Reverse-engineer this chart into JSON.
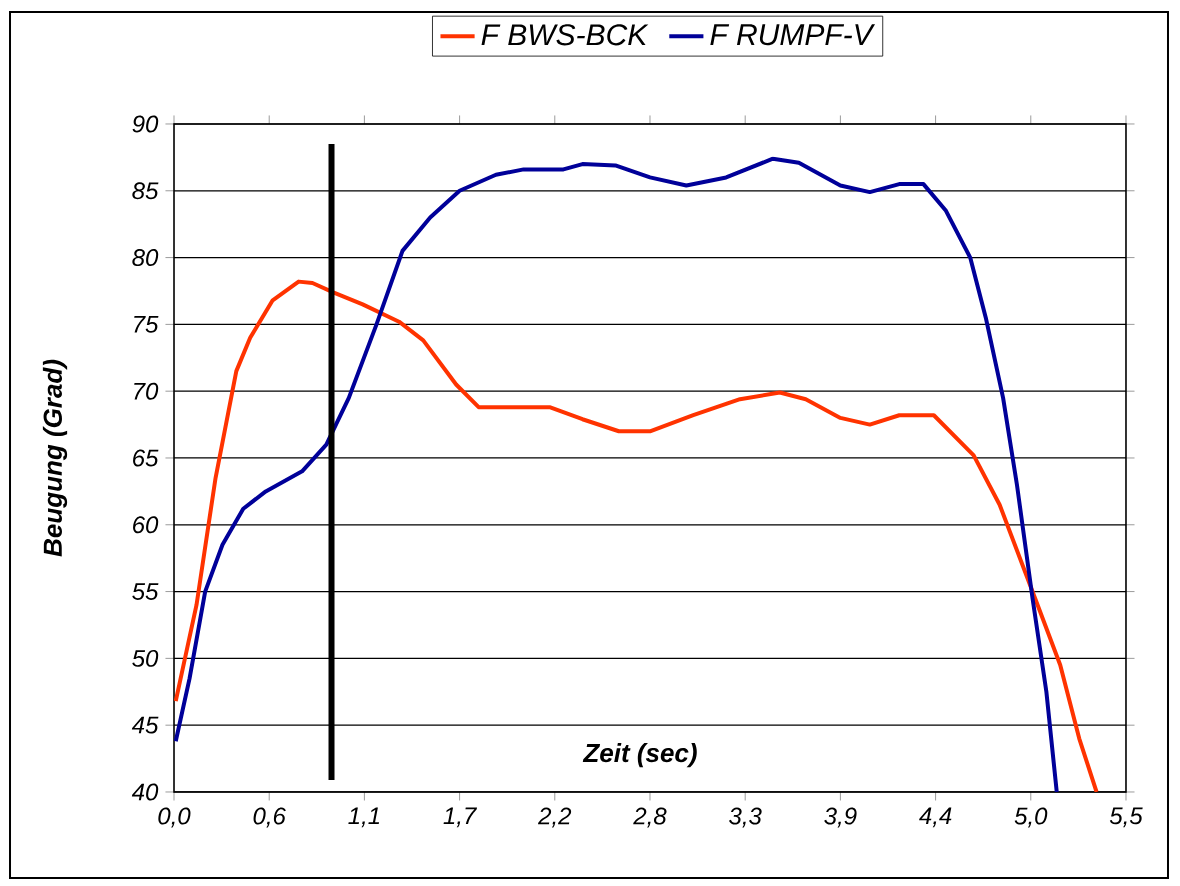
{
  "chart_data": {
    "type": "line",
    "xlabel": "Zeit (sec)",
    "ylabel": "Beugung (Grad)",
    "xlim": [
      0,
      5.5
    ],
    "ylim": [
      40,
      90
    ],
    "xticks": [
      {
        "value": 0,
        "label": "0,0"
      },
      {
        "value": 0.55,
        "label": "0,6"
      },
      {
        "value": 1.1,
        "label": "1,1"
      },
      {
        "value": 1.65,
        "label": "1,7"
      },
      {
        "value": 2.2,
        "label": "2,2"
      },
      {
        "value": 2.75,
        "label": "2,8"
      },
      {
        "value": 3.3,
        "label": "3,3"
      },
      {
        "value": 3.85,
        "label": "3,9"
      },
      {
        "value": 4.4,
        "label": "4,4"
      },
      {
        "value": 4.95,
        "label": "5,0"
      },
      {
        "value": 5.5,
        "label": "5,5"
      }
    ],
    "yticks": [
      40,
      45,
      50,
      55,
      60,
      65,
      70,
      75,
      80,
      85,
      90
    ],
    "grid": "y",
    "legend": "top",
    "marker": "none",
    "line_style": "solid",
    "ref_lines": [
      {
        "axis": "x",
        "value": 0.91,
        "color": "#000000"
      }
    ],
    "series": [
      {
        "name": "F  BWS-BCK",
        "color": "#ff3300",
        "x": [
          0.01,
          0.13,
          0.24,
          0.36,
          0.44,
          0.57,
          0.72,
          0.8,
          0.92,
          1.09,
          1.3,
          1.44,
          1.63,
          1.76,
          2.17,
          2.36,
          2.57,
          2.75,
          3.0,
          3.27,
          3.5,
          3.65,
          3.85,
          4.02,
          4.19,
          4.39,
          4.62,
          4.77,
          4.96,
          5.12,
          5.23,
          5.33
        ],
        "values": [
          46.8,
          54,
          63.5,
          71.5,
          74,
          76.8,
          78.2,
          78.1,
          77.4,
          76.5,
          75.2,
          73.8,
          70.5,
          68.8,
          68.8,
          67.9,
          67,
          67,
          68.2,
          69.4,
          69.9,
          69.4,
          68,
          67.5,
          68.2,
          68.2,
          65.2,
          61.5,
          55,
          49.5,
          44,
          40
        ]
      },
      {
        "name": "F  RUMPF-V",
        "color": "#000099",
        "x": [
          0.01,
          0.09,
          0.18,
          0.28,
          0.4,
          0.53,
          0.74,
          0.88,
          1.01,
          1.17,
          1.32,
          1.48,
          1.65,
          1.86,
          2.02,
          2.25,
          2.36,
          2.55,
          2.75,
          2.96,
          3.19,
          3.46,
          3.61,
          3.85,
          4.02,
          4.19,
          4.33,
          4.46,
          4.6,
          4.69,
          4.79,
          4.87,
          4.96,
          5.04,
          5.1
        ],
        "values": [
          43.8,
          48.5,
          55,
          58.5,
          61.2,
          62.5,
          64,
          66,
          69.5,
          75,
          80.5,
          83,
          85,
          86.2,
          86.6,
          86.6,
          87,
          86.9,
          86,
          85.4,
          86,
          87.4,
          87.1,
          85.4,
          84.9,
          85.5,
          85.5,
          83.5,
          80,
          75.5,
          69.5,
          63,
          54.5,
          47.5,
          40
        ]
      }
    ]
  }
}
